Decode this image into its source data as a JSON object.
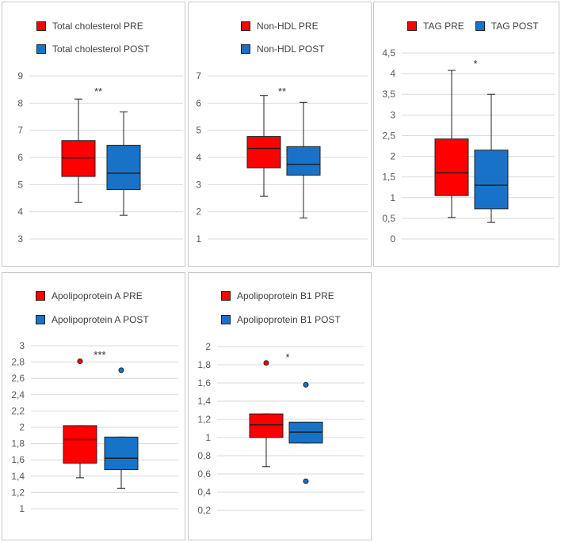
{
  "colors": {
    "pre": "#ff0000",
    "post": "#1873c8",
    "grid": "#d9d9d9",
    "stroke": "#202020",
    "panel_border": "#c8c8c8"
  },
  "chart_data": [
    {
      "type": "boxplot",
      "legend_layout": "stacked",
      "legend": [
        "Total cholesterol PRE",
        "Total cholesterol POST"
      ],
      "ylim": [
        3,
        9
      ],
      "ticks": [
        3,
        4,
        5,
        6,
        7,
        8,
        9
      ],
      "tick_labels": [
        "3",
        "4",
        "5",
        "6",
        "7",
        "8",
        "9"
      ],
      "significance": "**",
      "series": [
        {
          "name": "Total cholesterol PRE",
          "color": "pre",
          "min": 4.35,
          "q1": 5.3,
          "median": 5.98,
          "q3": 6.62,
          "max": 8.15,
          "outliers": []
        },
        {
          "name": "Total cholesterol POST",
          "color": "post",
          "min": 3.87,
          "q1": 4.82,
          "median": 5.42,
          "q3": 6.45,
          "max": 7.68,
          "outliers": []
        }
      ]
    },
    {
      "type": "boxplot",
      "legend_layout": "stacked",
      "legend": [
        "Non-HDL PRE",
        "Non-HDL POST"
      ],
      "ylim": [
        1,
        7
      ],
      "ticks": [
        1,
        2,
        3,
        4,
        5,
        6,
        7
      ],
      "tick_labels": [
        "1",
        "2",
        "3",
        "4",
        "5",
        "6",
        "7"
      ],
      "significance": "**",
      "series": [
        {
          "name": "Non-HDL PRE",
          "color": "pre",
          "min": 2.57,
          "q1": 3.62,
          "median": 4.33,
          "q3": 4.77,
          "max": 6.28,
          "outliers": []
        },
        {
          "name": "Non-HDL POST",
          "color": "post",
          "min": 1.77,
          "q1": 3.35,
          "median": 3.75,
          "q3": 4.4,
          "max": 6.03,
          "outliers": []
        }
      ]
    },
    {
      "type": "boxplot",
      "legend_layout": "inline",
      "legend": [
        "TAG PRE",
        "TAG POST"
      ],
      "ylim": [
        0,
        4.5
      ],
      "ticks": [
        0,
        0.5,
        1,
        1.5,
        2,
        2.5,
        3,
        3.5,
        4,
        4.5
      ],
      "tick_labels": [
        "0",
        "0,5",
        "1",
        "1,5",
        "2",
        "2,5",
        "3",
        "3,5",
        "4",
        "4,5"
      ],
      "significance": "*",
      "series": [
        {
          "name": "TAG PRE",
          "color": "pre",
          "min": 0.52,
          "q1": 1.05,
          "median": 1.6,
          "q3": 2.42,
          "max": 4.08,
          "outliers": []
        },
        {
          "name": "TAG POST",
          "color": "post",
          "min": 0.4,
          "q1": 0.73,
          "median": 1.3,
          "q3": 2.15,
          "max": 3.5,
          "outliers": []
        }
      ]
    },
    {
      "type": "boxplot",
      "legend_layout": "stacked",
      "legend": [
        "Apolipoprotein A PRE",
        "Apolipoprotein A POST"
      ],
      "ylim": [
        1,
        3
      ],
      "ticks": [
        1,
        1.2,
        1.4,
        1.6,
        1.8,
        2,
        2.2,
        2.4,
        2.6,
        2.8,
        3
      ],
      "tick_labels": [
        "1",
        "1,2",
        "1,4",
        "1,6",
        "1,8",
        "2",
        "2,2",
        "2,4",
        "2,6",
        "2,8",
        "3"
      ],
      "significance": "***",
      "series": [
        {
          "name": "Apolipoprotein A PRE",
          "color": "pre",
          "min": 1.38,
          "q1": 1.56,
          "median": 1.85,
          "q3": 2.02,
          "max": 2.02,
          "outliers": [
            2.81
          ]
        },
        {
          "name": "Apolipoprotein A POST",
          "color": "post",
          "min": 1.25,
          "q1": 1.48,
          "median": 1.62,
          "q3": 1.88,
          "max": 1.88,
          "outliers": [
            2.7
          ]
        }
      ]
    },
    {
      "type": "boxplot",
      "legend_layout": "stacked",
      "legend": [
        "Apolipoprotein B1 PRE",
        "Apolipoprotein B1 POST"
      ],
      "ylim": [
        0.2,
        2
      ],
      "ticks": [
        0.2,
        0.4,
        0.6,
        0.8,
        1,
        1.2,
        1.4,
        1.6,
        1.8,
        2
      ],
      "tick_labels": [
        "0,2",
        "0,4",
        "0,6",
        "0,8",
        "1",
        "1,2",
        "1,4",
        "1,6",
        "1,8",
        "2"
      ],
      "significance": "*",
      "series": [
        {
          "name": "Apolipoprotein B1 PRE",
          "color": "pre",
          "min": 0.68,
          "q1": 1.0,
          "median": 1.14,
          "q3": 1.26,
          "max": 1.26,
          "outliers": [
            1.82
          ]
        },
        {
          "name": "Apolipoprotein B1 POST",
          "color": "post",
          "min": 0.94,
          "q1": 0.94,
          "median": 1.06,
          "q3": 1.17,
          "max": 1.17,
          "outliers": [
            1.58,
            0.52
          ]
        }
      ]
    }
  ]
}
